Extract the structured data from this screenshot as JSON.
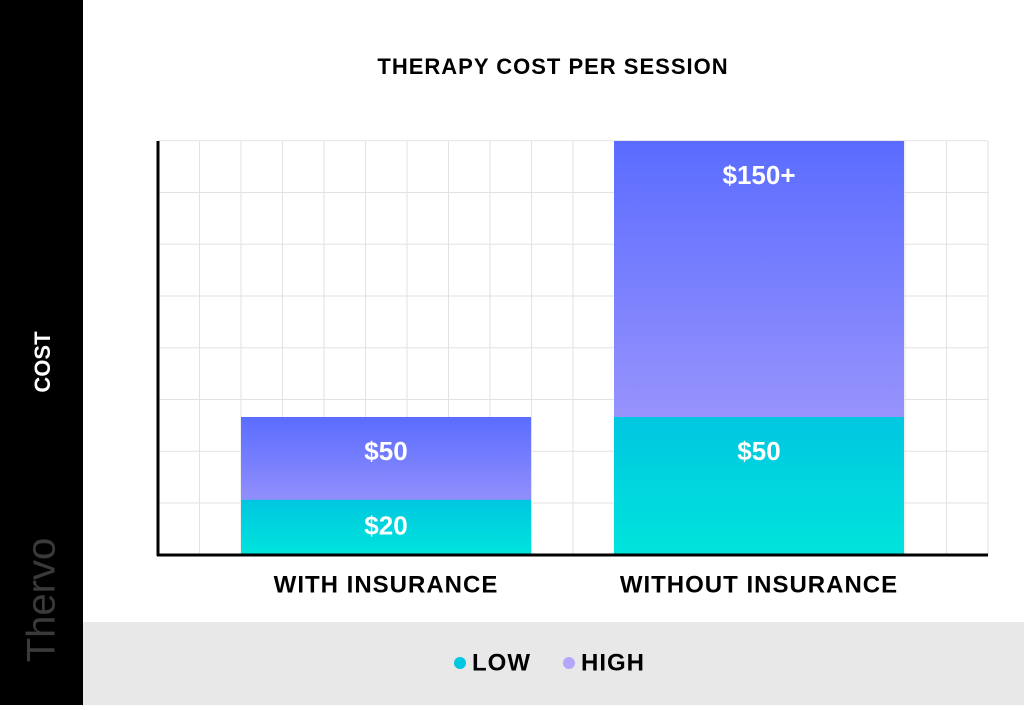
{
  "chart_data": {
    "type": "bar",
    "title": "THERAPY COST PER SESSION",
    "y_label": "COST",
    "brand": "Thervo",
    "categories": [
      "WITH INSURANCE",
      "WITHOUT INSURANCE"
    ],
    "series": [
      {
        "name": "LOW",
        "color": "#00c6e0",
        "values": [
          20,
          50
        ],
        "value_labels": [
          "$20",
          "$50"
        ]
      },
      {
        "name": "HIGH",
        "color": "#b6a6fa",
        "values": [
          50,
          150
        ],
        "value_labels": [
          "$50",
          "$150+"
        ]
      }
    ],
    "ylim": [
      0,
      150
    ],
    "grid": true
  }
}
